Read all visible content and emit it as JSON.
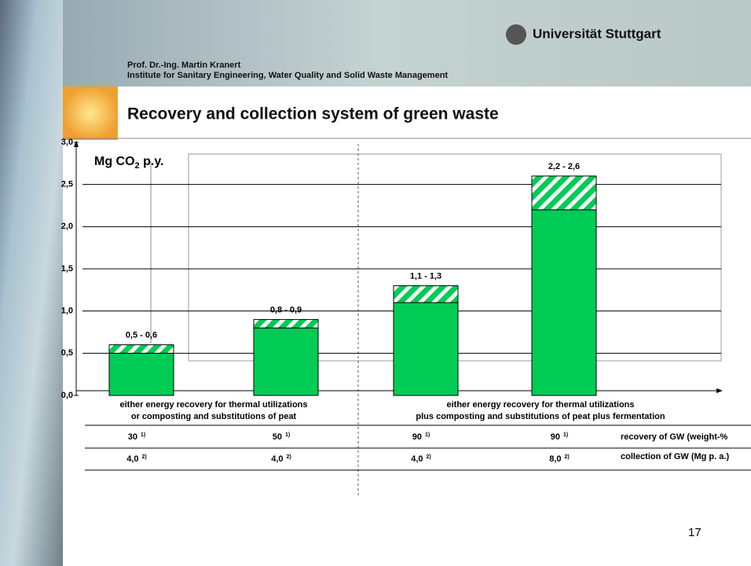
{
  "header": {
    "university": "Universität Stuttgart",
    "author": "Prof. Dr.-Ing. Martin Kranert",
    "institute": "Institute for Sanitary Engineering, Water Quality and Solid Waste Management",
    "title": "Recovery and collection system of green waste"
  },
  "chart_data": {
    "type": "bar",
    "stacked": true,
    "y_label_parts": [
      "Mg CO",
      "2",
      " p.y."
    ],
    "categories": [
      null,
      null,
      null,
      null
    ],
    "series": [
      {
        "color": "#00cc55",
        "values": [
          0.5,
          0.8,
          1.1,
          2.2
        ]
      },
      {
        "color": "#00cc55",
        "hatch": true,
        "values": [
          0.1,
          0.1,
          0.2,
          0.4
        ]
      }
    ],
    "value_labels": [
      "0,5 - 0,6",
      "0,8 - 0,9",
      "1,1 - 1,3",
      "2,2 - 2,6"
    ],
    "ylim": [
      0,
      3
    ],
    "yticks": [
      {
        "value": 0,
        "label": "0,0"
      },
      {
        "value": 0.5,
        "label": "0,5"
      },
      {
        "value": 1,
        "label": "1,0"
      },
      {
        "value": 1.5,
        "label": "1,5"
      },
      {
        "value": 2,
        "label": "2,0"
      },
      {
        "value": 2.5,
        "label": "2,5"
      },
      {
        "value": 3,
        "label": "3,0"
      }
    ],
    "grid": true,
    "groups": [
      {
        "lines": [
          "either energy recovery for thermal utilizations",
          "or composting and substitutions of peat"
        ]
      },
      {
        "lines": [
          "either energy recovery for thermal utilizations",
          "plus composting and substitutions of peat plus fermentation"
        ]
      }
    ],
    "table": {
      "rows": [
        {
          "values": [
            "30",
            "50",
            "90",
            "90"
          ],
          "note": "1)",
          "label": "recovery of GW (weight-%"
        },
        {
          "values": [
            "4,0",
            "4,0",
            "4,0",
            "8,0"
          ],
          "note": "2)",
          "label": "collection of GW (Mg p. a.)"
        }
      ]
    }
  },
  "page_number": "17"
}
